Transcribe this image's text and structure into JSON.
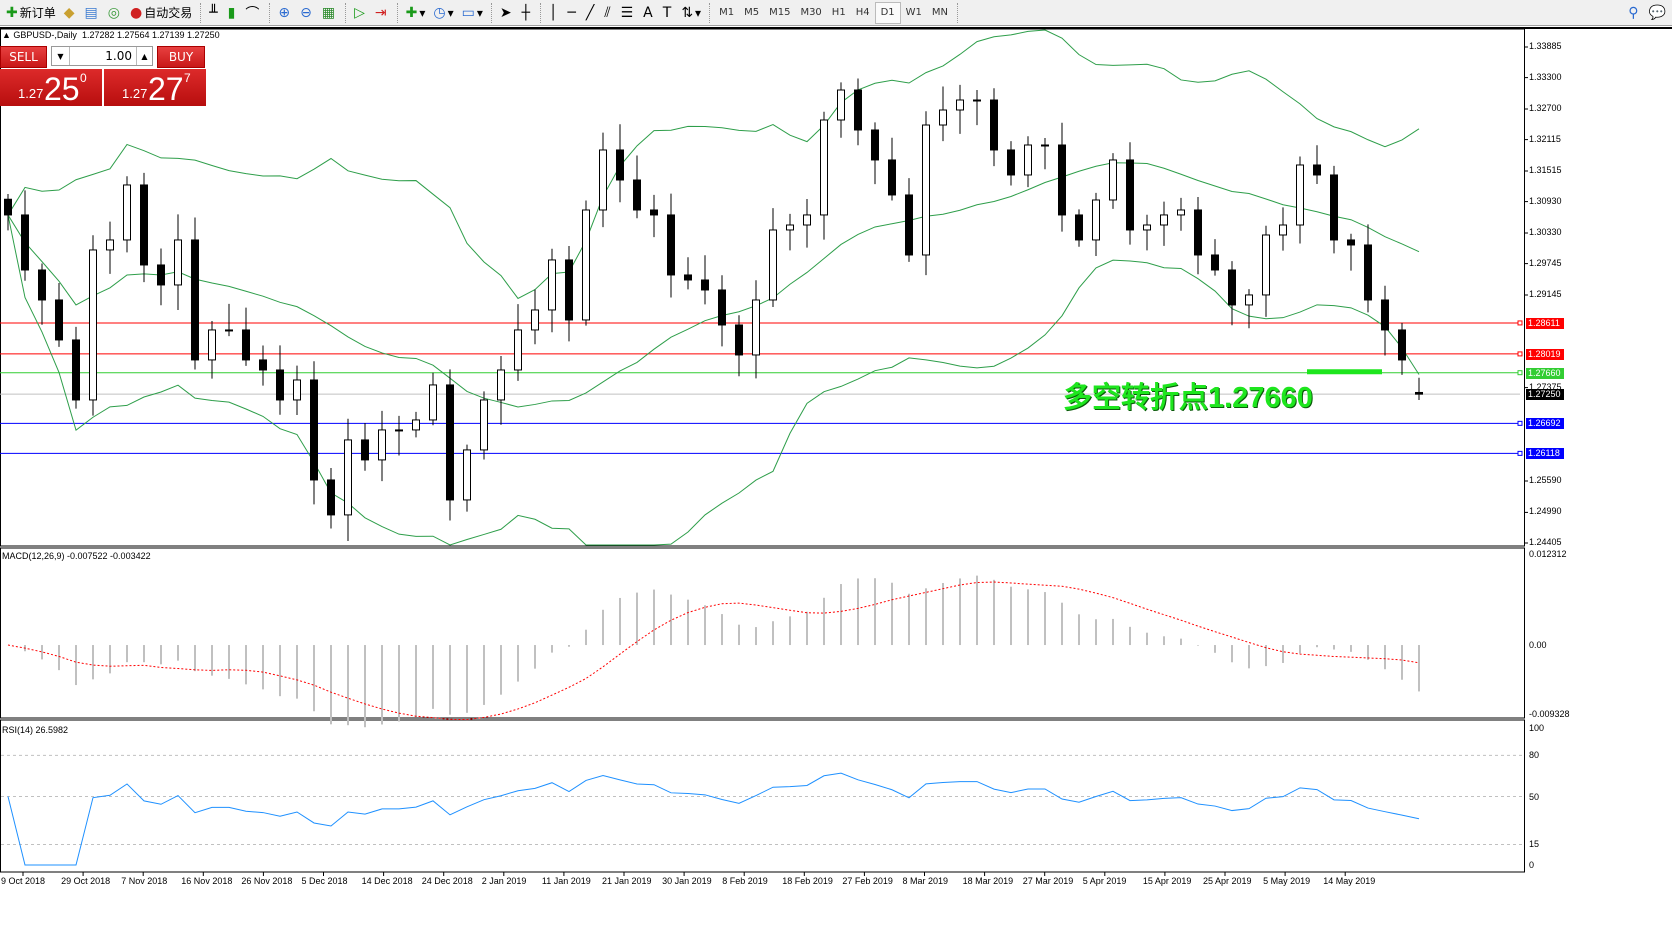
{
  "toolbar": {
    "new_order": "新订单",
    "auto_trading": "自动交易",
    "timeframes": [
      "M1",
      "M5",
      "M15",
      "M30",
      "H1",
      "H4",
      "D1",
      "W1",
      "MN"
    ],
    "active_timeframe": "D1"
  },
  "header": {
    "symbol": "GBPUSD-,Daily",
    "ohlc": "1.27282 1.27564 1.27139 1.27250"
  },
  "trade": {
    "sell_label": "SELL",
    "buy_label": "BUY",
    "lot": "1.00",
    "sell": {
      "small": "1.27",
      "big": "25",
      "pip": "0"
    },
    "buy": {
      "small": "1.27",
      "big": "27",
      "pip": "7"
    }
  },
  "annotation": "多空转折点1.27660",
  "price_axis": [
    "1.33885",
    "1.33300",
    "1.32700",
    "1.32115",
    "1.31515",
    "1.30930",
    "1.30330",
    "1.29745",
    "1.29145",
    "1.27375",
    "1.25590",
    "1.24990",
    "1.24405"
  ],
  "levels": [
    {
      "price": "1.28611",
      "color": "#ff0000"
    },
    {
      "price": "1.28019",
      "color": "#ff0000"
    },
    {
      "price": "1.27660",
      "color": "#32cd32"
    },
    {
      "price": "1.27250",
      "color": "#000000"
    },
    {
      "price": "1.26692",
      "color": "#0000ff"
    },
    {
      "price": "1.26118",
      "color": "#0000ff"
    }
  ],
  "macd": {
    "label": "MACD(12,26,9) -0.007522 -0.003422",
    "axis": [
      "0.012312",
      "0.00",
      "-0.009328"
    ]
  },
  "rsi": {
    "label": "RSI(14) 26.5982",
    "axis": [
      "100",
      "80",
      "50",
      "15",
      "0"
    ]
  },
  "time_axis": [
    "9 Oct 2018",
    "29 Oct 2018",
    "7 Nov 2018",
    "16 Nov 2018",
    "26 Nov 2018",
    "5 Dec 2018",
    "14 Dec 2018",
    "24 Dec 2018",
    "2 Jan 2019",
    "11 Jan 2019",
    "21 Jan 2019",
    "30 Jan 2019",
    "8 Feb 2019",
    "18 Feb 2019",
    "27 Feb 2019",
    "8 Mar 2019",
    "18 Mar 2019",
    "27 Mar 2019",
    "5 Apr 2019",
    "15 Apr 2019",
    "25 Apr 2019",
    "5 May 2019",
    "14 May 2019"
  ],
  "chart_data": {
    "type": "candlestick",
    "symbol": "GBPUSD",
    "timeframe": "Daily",
    "ylim": [
      1.24405,
      1.33885
    ],
    "indicators": [
      "Bollinger Bands",
      "MACD(12,26,9)",
      "RSI(14)"
    ],
    "colors": {
      "bands": "#2e9e4a",
      "macd_hist": "#c0c0c0",
      "macd_signal": "#ff0000",
      "rsi": "#1e90ff"
    },
    "closes": [
      1.30675,
      1.29623,
      1.2905,
      1.28286,
      1.27139,
      1.30006,
      1.30197,
      1.31248,
      1.29719,
      1.29337,
      1.30197,
      1.27904,
      1.28477,
      1.28477,
      1.27904,
      1.27712,
      1.27139,
      1.27521,
      1.2561,
      1.24942,
      1.26375,
      1.25993,
      1.26566,
      1.26566,
      1.26757,
      1.27426,
      1.25228,
      1.26184,
      1.27139,
      1.27712,
      1.28477,
      1.28859,
      1.29815,
      1.28668,
      1.3077,
      1.31917,
      1.31343,
      1.3077,
      1.30675,
      1.29528,
      1.29432,
      1.29241,
      1.28572,
      1.27999,
      1.2905,
      1.30388,
      1.30483,
      1.30675,
      1.3249,
      1.33063,
      1.32299,
      1.31726,
      1.31057,
      1.2991,
      1.32394,
      1.32681,
      1.32872,
      1.32872,
      1.31917,
      1.31439,
      1.32012,
      1.32012,
      1.30675,
      1.30197,
      1.30961,
      1.31726,
      1.30388,
      1.30483,
      1.30675,
      1.3077,
      1.2991,
      1.29623,
      1.28955,
      1.29146,
      1.30292,
      1.30483,
      1.3163,
      1.31439,
      1.30197,
      1.30101,
      1.2905,
      1.28477,
      1.27904,
      1.2725
    ],
    "last_bar": {
      "open": 1.27282,
      "high": 1.27564,
      "low": 1.27139,
      "close": 1.2725
    }
  }
}
